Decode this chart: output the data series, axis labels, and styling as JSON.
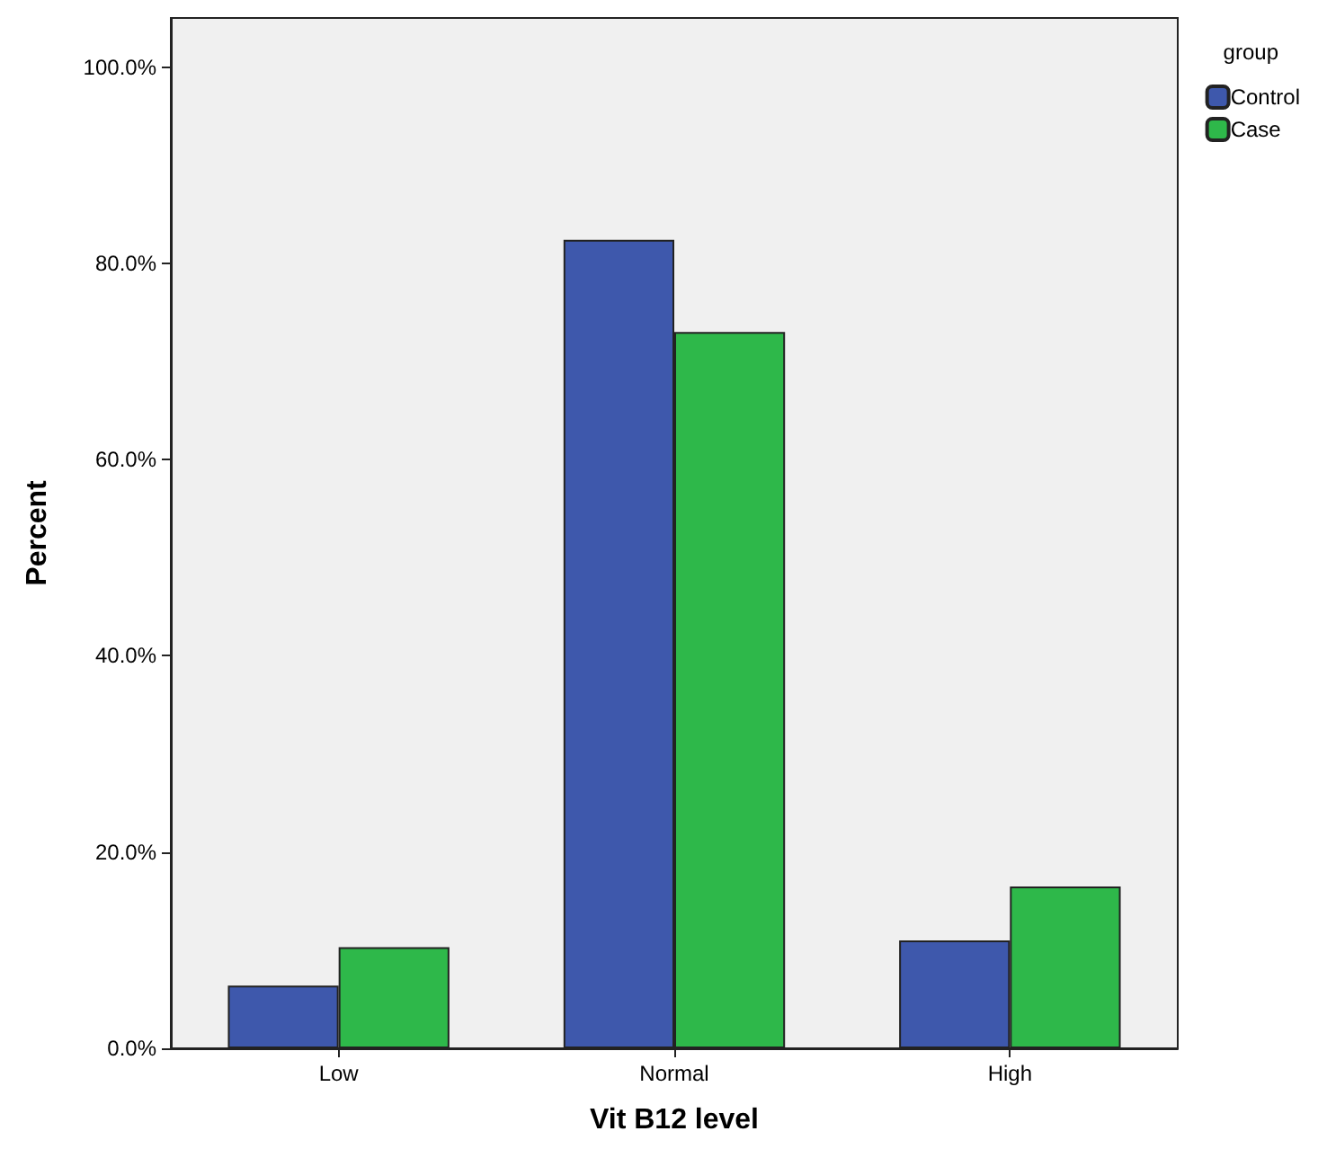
{
  "chart_data": {
    "type": "bar",
    "xlabel": "Vit B12 level",
    "ylabel": "Percent",
    "legend_title": "group",
    "categories": [
      "Low",
      "Normal",
      "High"
    ],
    "series": [
      {
        "name": "Control",
        "color": "#3e58ac",
        "values": [
          6.4,
          82.4,
          11.0
        ]
      },
      {
        "name": "Case",
        "color": "#2eb84a",
        "values": [
          10.3,
          73.0,
          16.5
        ]
      }
    ],
    "ylim": [
      0,
      105
    ],
    "yticks": [
      {
        "value": 0,
        "label": "0.0%"
      },
      {
        "value": 20,
        "label": "20.0%"
      },
      {
        "value": 40,
        "label": "40.0%"
      },
      {
        "value": 60,
        "label": "60.0%"
      },
      {
        "value": 80,
        "label": "80.0%"
      },
      {
        "value": 100,
        "label": "100.0%"
      }
    ],
    "grid": false,
    "legend": "top right"
  }
}
